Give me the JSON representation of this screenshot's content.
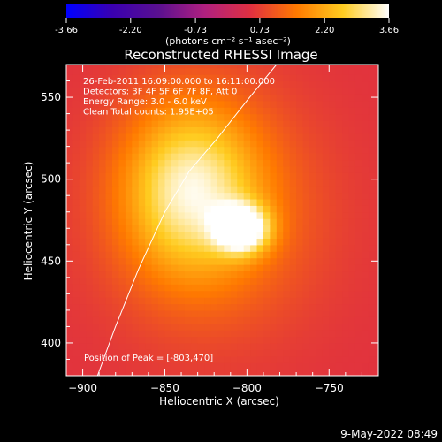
{
  "chart_data": {
    "type": "heatmap",
    "title": "Reconstructed RHESSI Image",
    "xlabel": "Heliocentric X (arcsec)",
    "ylabel": "Heliocentric Y (arcsec)",
    "xlim": [
      -910,
      -720
    ],
    "ylim": [
      380,
      570
    ],
    "xticks": [
      -900,
      -850,
      -800,
      -750
    ],
    "yticks": [
      400,
      450,
      500,
      550
    ],
    "colorbar": {
      "min": -3.66,
      "max": 3.66,
      "ticks": [
        "-3.66",
        "-2.20",
        "-0.73",
        "0.73",
        "2.20",
        "3.66"
      ],
      "label": "(photons cm⁻² s⁻¹ asec⁻²)",
      "colors": [
        "#0000ff",
        "#3a00b0",
        "#5a1090",
        "#b02080",
        "#e03040",
        "#ff7a00",
        "#ffcc20",
        "#ffffff"
      ]
    },
    "info_lines": [
      "26-Feb-2011 16:09:00.000 to 16:11:00.000",
      "Detectors: 3F 4F 5F 6F 7F 8F, Att 0",
      "Energy Range: 3.0 - 6.0 keV",
      "Clean    Total counts: 1.95E+05"
    ],
    "peak_label": "Position of Peak = [-803,470]",
    "peak": {
      "x": -803,
      "y": 470,
      "value": 3.66
    },
    "sources": [
      {
        "x": -803,
        "y": 470,
        "sx": 11,
        "sy": 10,
        "amp": 3.2
      },
      {
        "x": -835,
        "y": 495,
        "sx": 28,
        "sy": 36,
        "amp": 2.1
      },
      {
        "x": -820,
        "y": 480,
        "sx": 45,
        "sy": 50,
        "amp": 1.0
      }
    ],
    "limb_curve": [
      [
        -891,
        380
      ],
      [
        -880,
        410
      ],
      [
        -866,
        445
      ],
      [
        -850,
        480
      ],
      [
        -835,
        505
      ],
      [
        -818,
        525
      ],
      [
        -800,
        548
      ],
      [
        -782,
        570
      ]
    ]
  },
  "footer": {
    "date": "9-May-2022 08:49"
  }
}
